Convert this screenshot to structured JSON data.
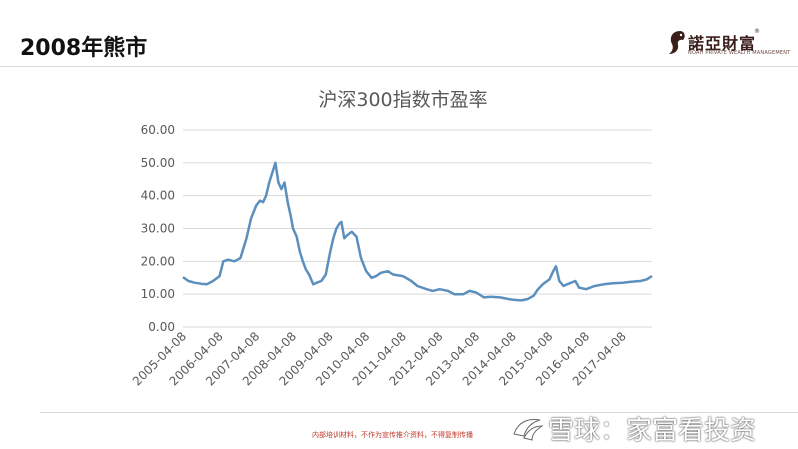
{
  "slide": {
    "title": "2008年熊市",
    "disclaimer": "内部培训材料，不作为宣传推介资料，不得复制传播"
  },
  "logo": {
    "name": "諾亞財富",
    "tagline": "NOAH PRIVATE WEALTH MANAGEMENT",
    "registered_mark": "®"
  },
  "watermark": {
    "text": "雪球：家富看投资"
  },
  "colors": {
    "line": "#5b8fbd",
    "grid": "#d9d9d9",
    "text": "#595959"
  },
  "chart_data": {
    "type": "line",
    "title": "沪深300指数市盈率",
    "xlabel": "",
    "ylabel": "",
    "ylim": [
      0,
      60
    ],
    "yticks": [
      "60.00",
      "50.00",
      "40.00",
      "30.00",
      "20.00",
      "10.00",
      "0.00"
    ],
    "xticks": [
      "2005-04-08",
      "2006-04-08",
      "2007-04-08",
      "2008-04-08",
      "2009-04-08",
      "2010-04-08",
      "2011-04-08",
      "2012-04-08",
      "2013-04-08",
      "2014-04-08",
      "2015-04-08",
      "2016-04-08",
      "2017-04-08"
    ],
    "grid": "horizontal",
    "legend": "none",
    "series": [
      {
        "x": [
          "2005-04-08",
          "2005-06-01",
          "2005-08-01",
          "2005-10-01",
          "2005-12-01",
          "2006-02-01",
          "2006-04-08",
          "2006-05-15",
          "2006-07-01",
          "2006-09-01",
          "2006-11-01",
          "2007-01-01",
          "2007-02-15",
          "2007-04-08",
          "2007-05-15",
          "2007-06-15",
          "2007-07-15",
          "2007-08-15",
          "2007-09-15",
          "2007-10-16",
          "2007-11-15",
          "2007-12-15",
          "2008-01-15",
          "2008-02-15",
          "2008-03-15",
          "2008-04-08",
          "2008-05-15",
          "2008-06-15",
          "2008-07-15",
          "2008-08-15",
          "2008-09-15",
          "2008-10-28",
          "2008-12-01",
          "2009-01-15",
          "2009-03-01",
          "2009-04-08",
          "2009-05-15",
          "2009-06-15",
          "2009-07-15",
          "2009-08-04",
          "2009-09-01",
          "2009-10-01",
          "2009-11-15",
          "2010-01-01",
          "2010-02-15",
          "2010-04-08",
          "2010-06-01",
          "2010-07-15",
          "2010-09-01",
          "2010-11-10",
          "2011-01-01",
          "2011-04-08",
          "2011-07-01",
          "2011-09-01",
          "2011-12-01",
          "2012-02-01",
          "2012-04-08",
          "2012-07-01",
          "2012-09-01",
          "2012-12-01",
          "2013-02-01",
          "2013-04-08",
          "2013-06-25",
          "2013-09-01",
          "2013-12-01",
          "2014-03-01",
          "2014-04-08",
          "2014-07-01",
          "2014-09-01",
          "2014-11-01",
          "2014-12-15",
          "2015-02-01",
          "2015-04-08",
          "2015-05-15",
          "2015-06-12",
          "2015-07-15",
          "2015-08-26",
          "2015-10-01",
          "2015-12-22",
          "2016-01-28",
          "2016-04-08",
          "2016-07-01",
          "2016-10-01",
          "2017-01-01",
          "2017-04-08",
          "2017-07-01",
          "2017-10-01",
          "2017-12-01",
          "2018-01-24"
        ],
        "y": [
          15.2,
          14.0,
          13.5,
          13.2,
          13.0,
          14.0,
          15.5,
          20.0,
          20.5,
          20.0,
          21.0,
          27.0,
          33.0,
          37.0,
          38.5,
          38.0,
          40.0,
          44.0,
          47.0,
          50.0,
          44.0,
          42.0,
          44.0,
          38.0,
          34.0,
          30.0,
          27.5,
          23.0,
          20.0,
          17.5,
          16.0,
          13.0,
          13.5,
          14.0,
          16.0,
          22.0,
          27.0,
          30.0,
          31.5,
          32.0,
          27.0,
          28.0,
          29.0,
          27.5,
          21.0,
          17.0,
          15.0,
          15.5,
          16.5,
          17.0,
          16.0,
          15.5,
          14.0,
          12.5,
          11.5,
          11.0,
          11.5,
          11.0,
          10.0,
          10.0,
          11.0,
          10.5,
          9.0,
          9.2,
          9.0,
          8.5,
          8.3,
          8.1,
          8.5,
          9.5,
          11.5,
          13.0,
          14.5,
          17.0,
          18.5,
          14.0,
          12.5,
          13.0,
          14.0,
          12.0,
          11.5,
          12.5,
          13.0,
          13.3,
          13.5,
          13.8,
          14.0,
          14.5,
          15.5
        ]
      }
    ]
  }
}
